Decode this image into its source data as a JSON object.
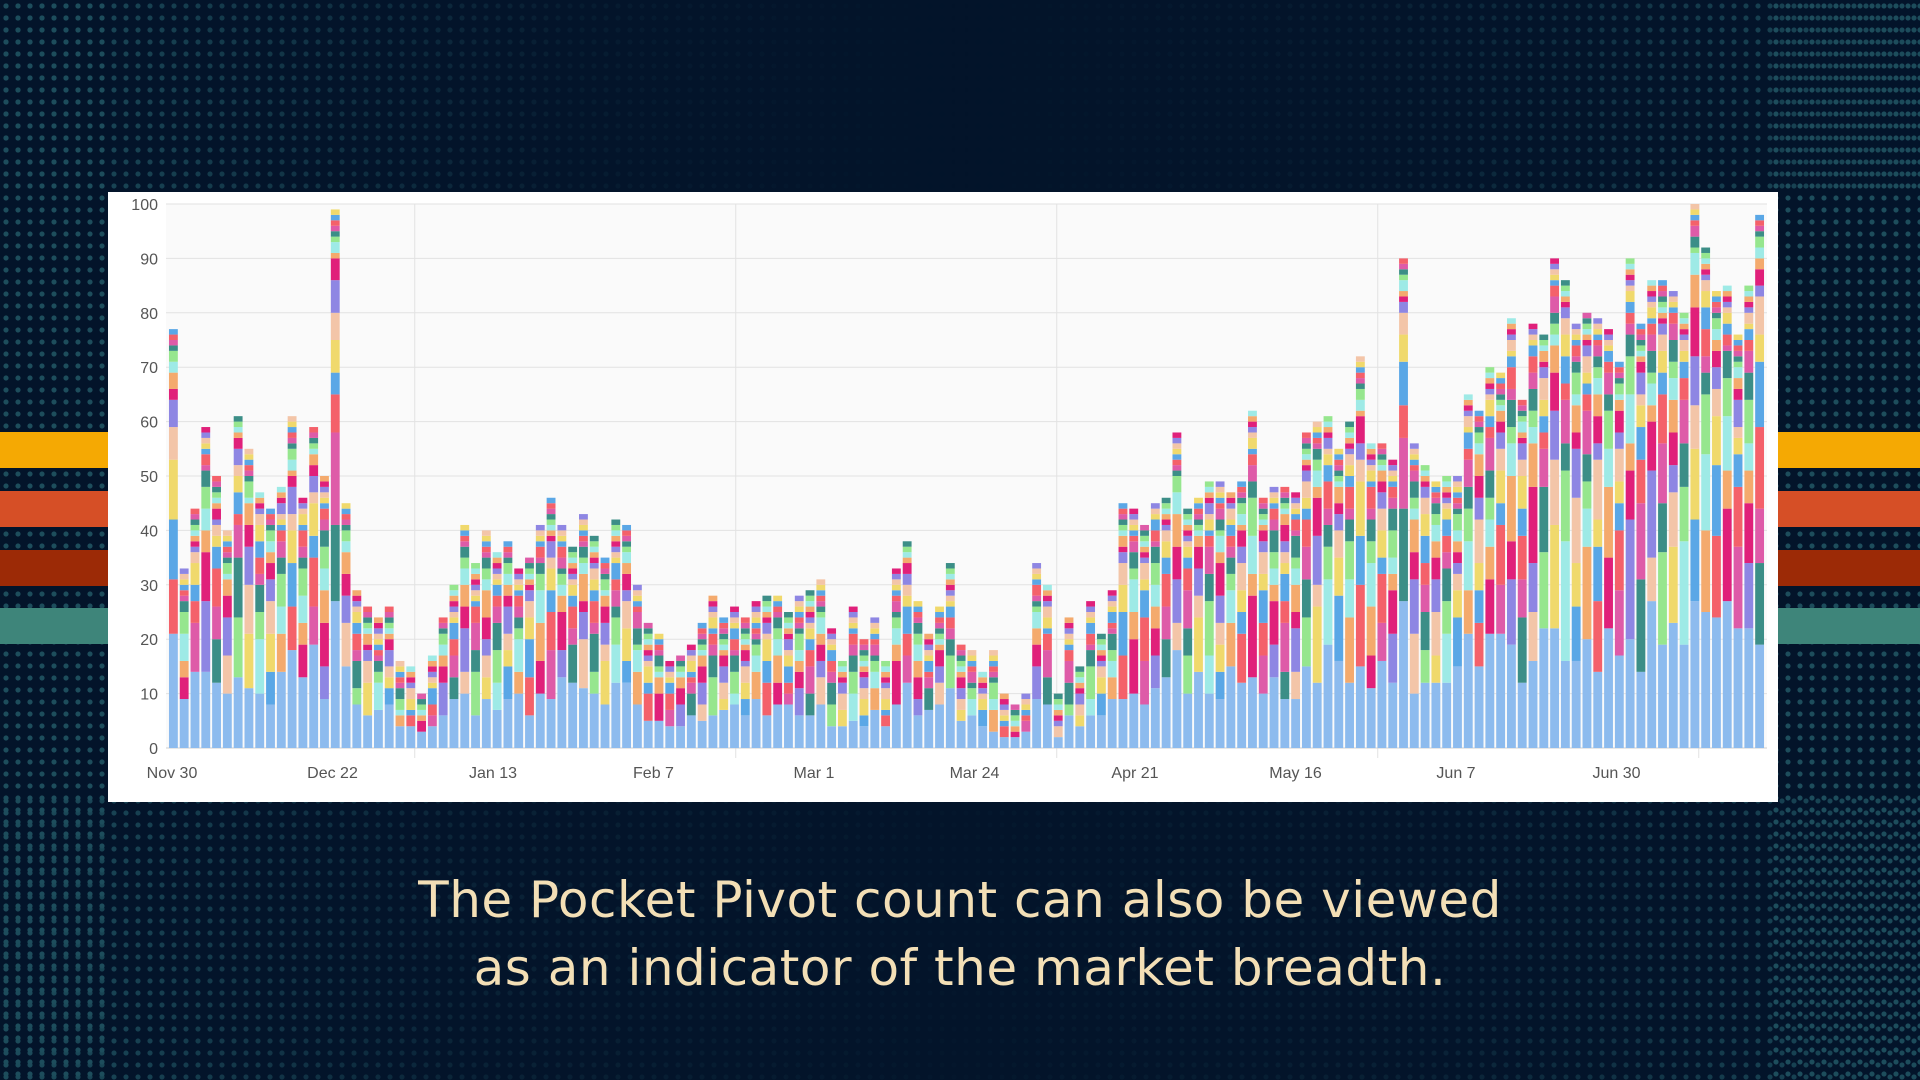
{
  "slide": {
    "background": "#03142a",
    "dot_color": "#1d4d5c",
    "caption_color": "#f3dfb6",
    "stripes": [
      "#f5a903",
      "#d64f26",
      "#9c2a06",
      "#3e857a"
    ],
    "caption_lines": [
      "The Pocket Pivot count can also be viewed",
      "as an indicator of the market breadth."
    ]
  },
  "chart_data": {
    "type": "bar",
    "stacked": true,
    "title": "",
    "xlabel": "",
    "ylabel": "",
    "ylim": [
      0,
      100
    ],
    "yticks": [
      0,
      10,
      20,
      30,
      40,
      50,
      60,
      70,
      80,
      90,
      100
    ],
    "x_tick_labels": [
      "Nov 30",
      "Dec 22",
      "Jan 13",
      "Feb 7",
      "Mar 1",
      "Mar 24",
      "Apr 21",
      "May 16",
      "Jun 7",
      "Jun 30"
    ],
    "grid": true,
    "legend": "none",
    "segment_colors": [
      "#8dbbee",
      "#de5ba8",
      "#96e68e",
      "#f4aa6d",
      "#8e86e3",
      "#f0d96c",
      "#f4616a",
      "#3c8e87",
      "#9eeae6",
      "#e0207a",
      "#f3c5a8",
      "#5aa7e6"
    ],
    "total_values": [
      77,
      33,
      44,
      59,
      50,
      40,
      61,
      55,
      47,
      44,
      48,
      61,
      46,
      59,
      50,
      99,
      45,
      29,
      26,
      24,
      26,
      16,
      15,
      10,
      17,
      24,
      30,
      41,
      34,
      40,
      36,
      38,
      33,
      35,
      41,
      46,
      41,
      37,
      43,
      39,
      35,
      42,
      41,
      30,
      23,
      21,
      16,
      17,
      19,
      23,
      28,
      24,
      26,
      24,
      27,
      28,
      28,
      25,
      28,
      29,
      31,
      22,
      16,
      26,
      20,
      24,
      16,
      33,
      38,
      27,
      21,
      26,
      34,
      19,
      18,
      14,
      18,
      10,
      8,
      10,
      34,
      30,
      10,
      24,
      15,
      27,
      21,
      29,
      45,
      44,
      41,
      45,
      46,
      58,
      44,
      46,
      49,
      49,
      47,
      49,
      62,
      46,
      48,
      48,
      47,
      58,
      60,
      61,
      55,
      60,
      72,
      56,
      56,
      53,
      90,
      56,
      52,
      49,
      50,
      50,
      65,
      62,
      70,
      69,
      79,
      64,
      78,
      76,
      90,
      86,
      78,
      80,
      79,
      77,
      71,
      90,
      78,
      86,
      86,
      84,
      80,
      100,
      92,
      84,
      85,
      76,
      85,
      98
    ],
    "note": "Each bar is a stack of colored segments (one per stock); segment split is not labeled on the chart."
  }
}
